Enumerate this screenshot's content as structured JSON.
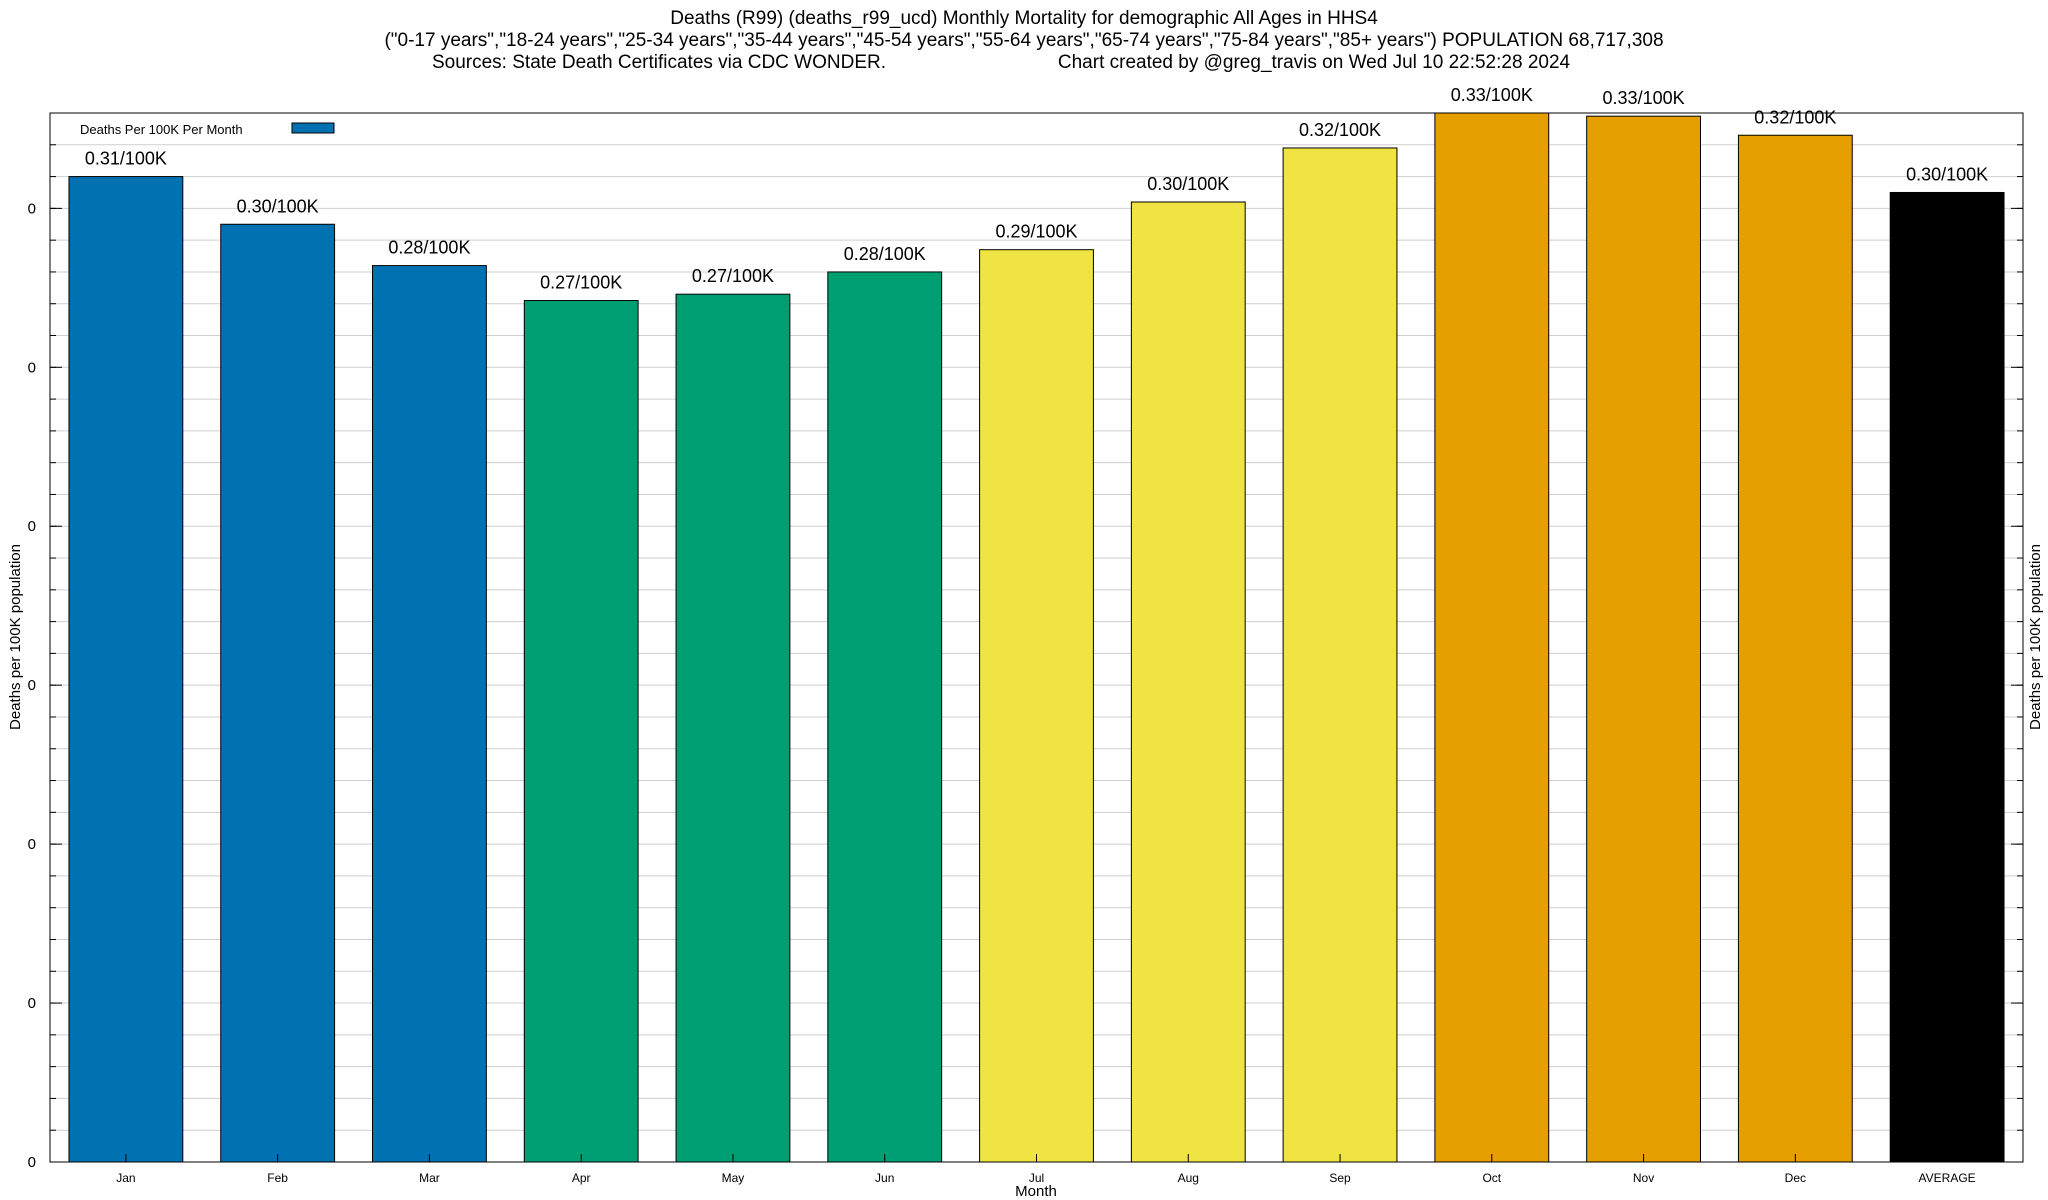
{
  "title": {
    "line1": "Deaths (R99) (deaths_r99_ucd) Monthly Mortality for demographic All Ages in HHS4",
    "line2": "(\"0-17 years\",\"18-24 years\",\"25-34 years\",\"35-44 years\",\"45-54 years\",\"55-64 years\",\"65-74 years\",\"75-84 years\",\"85+ years\") POPULATION 68,717,308",
    "line3_left": "Sources: State Death Certificates via CDC WONDER.",
    "line3_right": "Chart created by @greg_travis on Wed Jul 10 22:52:28 2024"
  },
  "chart_data": {
    "type": "bar",
    "categories": [
      "Jan",
      "Feb",
      "Mar",
      "Apr",
      "May",
      "Jun",
      "Jul",
      "Aug",
      "Sep",
      "Oct",
      "Nov",
      "Dec",
      "AVERAGE"
    ],
    "values": [
      0.31,
      0.295,
      0.282,
      0.271,
      0.273,
      0.28,
      0.287,
      0.302,
      0.319,
      0.33,
      0.329,
      0.323,
      0.305
    ],
    "value_labels": [
      "0.31/100K",
      "0.30/100K",
      "0.28/100K",
      "0.27/100K",
      "0.27/100K",
      "0.28/100K",
      "0.29/100K",
      "0.30/100K",
      "0.32/100K",
      "0.33/100K",
      "0.33/100K",
      "0.32/100K",
      "0.30/100K"
    ],
    "colors": [
      "#0072b2",
      "#0072b2",
      "#0072b2",
      "#009e73",
      "#009e73",
      "#009e73",
      "#f0e442",
      "#f0e442",
      "#f0e442",
      "#e69f00",
      "#e69f00",
      "#e69f00",
      "#000000"
    ],
    "series": [
      {
        "name": "Deaths Per 100K Per Month",
        "color": "#0072b2"
      }
    ],
    "ylim": [
      0,
      0.33
    ],
    "yticks": [
      0,
      0.05,
      0.1,
      0.15,
      0.2,
      0.25,
      0.3
    ],
    "ytick_labels": [
      "0",
      "0",
      "0",
      "0",
      "0",
      "0",
      "0"
    ],
    "xlabel": "Month",
    "ylabel": "Deaths per 100K population",
    "ylabel_right": "Deaths per 100K population",
    "grid": true,
    "legend_position": "top-left"
  }
}
